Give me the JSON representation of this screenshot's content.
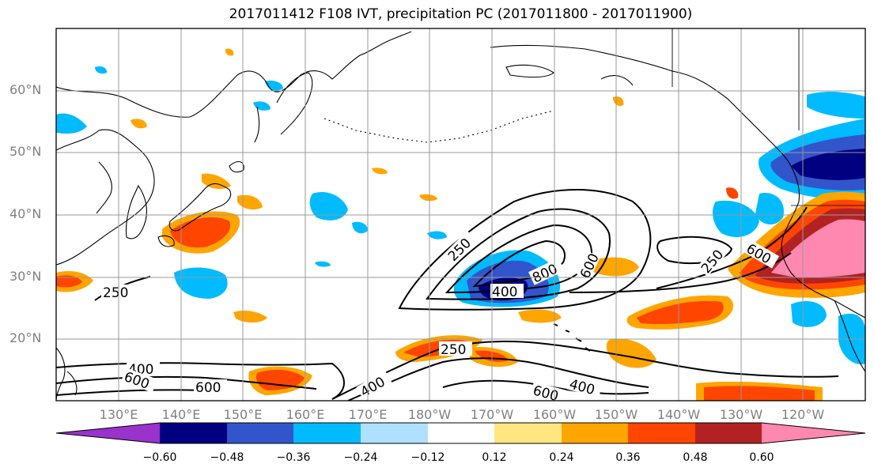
{
  "title": "2017011412 F108 IVT, precipitation PC (2017011800 - 2017011900)",
  "lat_labels": [
    "60°N",
    "50°N",
    "40°N",
    "30°N",
    "20°N"
  ],
  "lon_labels": [
    "130°E",
    "140°E",
    "150°E",
    "160°E",
    "170°E",
    "180°W",
    "170°W",
    "160°W",
    "150°W",
    "140°W",
    "130°W",
    "120°W"
  ],
  "contour_labels": [
    "250",
    "250",
    "250",
    "250",
    "800",
    "600",
    "600",
    "400",
    "400",
    "600",
    "400",
    "600",
    "250"
  ],
  "colorbar": {
    "tick_labels": [
      "−0.60",
      "−0.48",
      "−0.36",
      "−0.24",
      "−0.12",
      "0.12",
      "0.24",
      "0.36",
      "0.48",
      "0.60"
    ],
    "colors": [
      "#9933cc",
      "#000080",
      "#3355cc",
      "#00bbff",
      "#b0e0ff",
      "#ffffff",
      "#ffe680",
      "#ffa500",
      "#ff4500",
      "#b22222",
      "#ff88b0"
    ]
  }
}
